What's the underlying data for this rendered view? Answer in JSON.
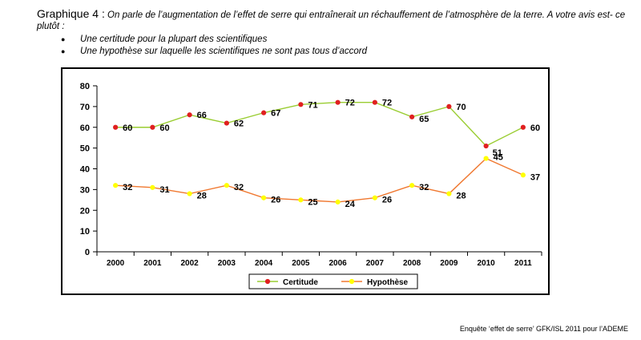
{
  "header": {
    "prefix": "Graphique 4 :",
    "question": "On parle de l’augmentation de l’effet de serre qui entraînerait un réchauffement de l’atmosphère de la terre. A votre avis est- ce plutôt :",
    "options": [
      "Une certitude pour la plupart des scientifiques",
      "Une hypothèse sur laquelle les scientifiques ne sont pas tous d’accord"
    ]
  },
  "footer": {
    "source": "Enquête ‘effet de serre’ GFK/ISL 2011 pour l’ADEME"
  },
  "chart_data": {
    "type": "line",
    "title": "",
    "xlabel": "",
    "ylabel": "",
    "ylim": [
      0,
      80
    ],
    "yticks": [
      0,
      10,
      20,
      30,
      40,
      50,
      60,
      70,
      80
    ],
    "categories": [
      "2000",
      "2001",
      "2002",
      "2003",
      "2004",
      "2005",
      "2006",
      "2007",
      "2008",
      "2009",
      "2010",
      "2011"
    ],
    "series": [
      {
        "name": "Certitude",
        "values": [
          60,
          60,
          66,
          62,
          67,
          71,
          72,
          72,
          65,
          70,
          51,
          60
        ],
        "line_color": "#9acd32",
        "marker_color": "#e02020"
      },
      {
        "name": "Hypothèse",
        "values": [
          32,
          31,
          28,
          32,
          26,
          25,
          24,
          26,
          32,
          28,
          45,
          37
        ],
        "line_color": "#f07830",
        "marker_color": "#ffff00"
      }
    ],
    "legend_position": "bottom-center"
  }
}
